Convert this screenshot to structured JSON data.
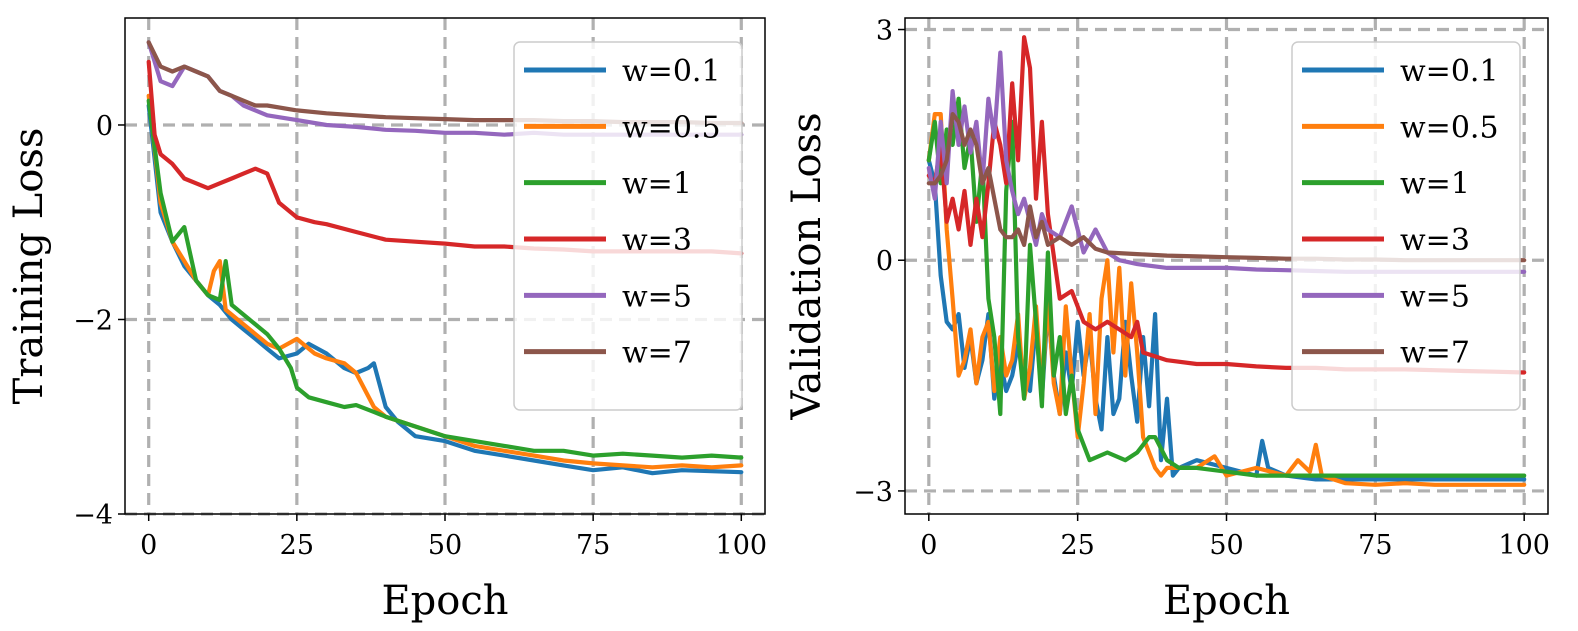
{
  "chart_data": [
    {
      "type": "line",
      "xlabel": "Epoch",
      "ylabel": "Training Loss",
      "xlim": [
        -4,
        104
      ],
      "ylim": [
        -4,
        1.1
      ],
      "xticks": [
        0,
        25,
        50,
        75,
        100
      ],
      "yticks": [
        -4,
        -2,
        0
      ],
      "xtick_labels": [
        "0",
        "25",
        "50",
        "75",
        "100"
      ],
      "ytick_labels": [
        "−4",
        "−2",
        "0"
      ],
      "grid": true,
      "legend_position": "top-right",
      "series": [
        {
          "name": "w=0.1",
          "color": "#1f77b4",
          "x": [
            0,
            2,
            4,
            6,
            8,
            10,
            12,
            14,
            16,
            18,
            20,
            22,
            25,
            27,
            30,
            33,
            35,
            37,
            38,
            40,
            42,
            45,
            50,
            55,
            60,
            65,
            70,
            75,
            80,
            85,
            90,
            95,
            100
          ],
          "y": [
            0.2,
            -0.9,
            -1.2,
            -1.45,
            -1.6,
            -1.75,
            -1.85,
            -2.0,
            -2.1,
            -2.2,
            -2.3,
            -2.4,
            -2.35,
            -2.25,
            -2.35,
            -2.5,
            -2.55,
            -2.5,
            -2.45,
            -2.9,
            -3.05,
            -3.2,
            -3.25,
            -3.35,
            -3.4,
            -3.45,
            -3.5,
            -3.55,
            -3.52,
            -3.58,
            -3.55,
            -3.56,
            -3.57
          ]
        },
        {
          "name": "w=0.5",
          "color": "#ff7f0e",
          "x": [
            0,
            2,
            4,
            6,
            8,
            10,
            11,
            12,
            13,
            15,
            18,
            20,
            22,
            25,
            28,
            30,
            33,
            35,
            38,
            40,
            45,
            50,
            55,
            60,
            65,
            70,
            75,
            80,
            85,
            90,
            95,
            100
          ],
          "y": [
            0.3,
            -0.8,
            -1.2,
            -1.4,
            -1.6,
            -1.75,
            -1.5,
            -1.4,
            -1.9,
            -2.0,
            -2.15,
            -2.25,
            -2.3,
            -2.2,
            -2.35,
            -2.4,
            -2.45,
            -2.55,
            -2.9,
            -3.0,
            -3.1,
            -3.2,
            -3.3,
            -3.35,
            -3.4,
            -3.45,
            -3.48,
            -3.5,
            -3.52,
            -3.5,
            -3.52,
            -3.5
          ]
        },
        {
          "name": "w=1",
          "color": "#2ca02c",
          "x": [
            0,
            2,
            4,
            6,
            8,
            10,
            12,
            13,
            14,
            16,
            18,
            20,
            22,
            24,
            25,
            27,
            30,
            33,
            35,
            38,
            40,
            45,
            50,
            55,
            60,
            65,
            70,
            75,
            80,
            85,
            90,
            95,
            100
          ],
          "y": [
            0.25,
            -0.7,
            -1.2,
            -1.05,
            -1.6,
            -1.75,
            -1.8,
            -1.4,
            -1.85,
            -1.95,
            -2.05,
            -2.15,
            -2.3,
            -2.5,
            -2.7,
            -2.8,
            -2.85,
            -2.9,
            -2.88,
            -2.95,
            -3.0,
            -3.1,
            -3.2,
            -3.25,
            -3.3,
            -3.35,
            -3.35,
            -3.4,
            -3.38,
            -3.4,
            -3.42,
            -3.4,
            -3.42
          ]
        },
        {
          "name": "w=3",
          "color": "#d62728",
          "x": [
            0,
            1,
            2,
            4,
            6,
            8,
            10,
            12,
            14,
            16,
            18,
            20,
            22,
            25,
            28,
            30,
            35,
            40,
            45,
            50,
            55,
            60,
            65,
            70,
            75,
            80,
            85,
            90,
            95,
            100
          ],
          "y": [
            0.65,
            -0.1,
            -0.3,
            -0.4,
            -0.55,
            -0.6,
            -0.65,
            -0.6,
            -0.55,
            -0.5,
            -0.45,
            -0.5,
            -0.8,
            -0.95,
            -1.0,
            -1.02,
            -1.1,
            -1.18,
            -1.2,
            -1.22,
            -1.25,
            -1.25,
            -1.27,
            -1.28,
            -1.3,
            -1.3,
            -1.3,
            -1.3,
            -1.3,
            -1.32
          ]
        },
        {
          "name": "w=5",
          "color": "#9467bd",
          "x": [
            0,
            2,
            4,
            6,
            8,
            10,
            12,
            14,
            16,
            18,
            20,
            25,
            30,
            35,
            40,
            45,
            50,
            55,
            60,
            65,
            70,
            75,
            80,
            85,
            90,
            95,
            100
          ],
          "y": [
            0.85,
            0.45,
            0.4,
            0.6,
            0.55,
            0.5,
            0.35,
            0.3,
            0.2,
            0.15,
            0.1,
            0.05,
            0.0,
            -0.02,
            -0.05,
            -0.06,
            -0.08,
            -0.08,
            -0.1,
            -0.08,
            -0.1,
            -0.1,
            -0.1,
            -0.1,
            -0.1,
            -0.1,
            -0.1
          ]
        },
        {
          "name": "w=7",
          "color": "#8c564b",
          "x": [
            0,
            2,
            4,
            6,
            8,
            10,
            12,
            14,
            16,
            18,
            20,
            25,
            30,
            35,
            40,
            45,
            50,
            55,
            60,
            65,
            70,
            75,
            80,
            85,
            90,
            95,
            100
          ],
          "y": [
            0.85,
            0.6,
            0.55,
            0.6,
            0.55,
            0.5,
            0.35,
            0.3,
            0.25,
            0.2,
            0.2,
            0.15,
            0.12,
            0.1,
            0.08,
            0.07,
            0.06,
            0.05,
            0.05,
            0.05,
            0.04,
            0.04,
            0.03,
            0.03,
            0.03,
            0.02,
            0.02
          ]
        }
      ]
    },
    {
      "type": "line",
      "xlabel": "Epoch",
      "ylabel": "Validation Loss",
      "xlim": [
        -4,
        104
      ],
      "ylim": [
        -3.3,
        3.15
      ],
      "xticks": [
        0,
        25,
        50,
        75,
        100
      ],
      "yticks": [
        -3,
        0,
        3
      ],
      "xtick_labels": [
        "0",
        "25",
        "50",
        "75",
        "100"
      ],
      "ytick_labels": [
        "−3",
        "0",
        "3"
      ],
      "grid": true,
      "legend_position": "top-right",
      "series": [
        {
          "name": "w=0.1",
          "color": "#1f77b4",
          "x": [
            0,
            1,
            2,
            3,
            4,
            5,
            6,
            7,
            8,
            9,
            10,
            11,
            12,
            13,
            14,
            15,
            16,
            17,
            18,
            19,
            20,
            21,
            22,
            23,
            24,
            25,
            26,
            27,
            28,
            29,
            30,
            31,
            32,
            33,
            34,
            35,
            36,
            37,
            38,
            39,
            40,
            41,
            42,
            45,
            50,
            55,
            56,
            57,
            60,
            65,
            70,
            75,
            80,
            85,
            90,
            95,
            100
          ],
          "y": [
            1.3,
            1.0,
            -0.2,
            -0.8,
            -0.9,
            -0.7,
            -1.4,
            -1.0,
            -1.6,
            -1.3,
            -0.7,
            -1.8,
            -1.3,
            -1.7,
            -1.5,
            -1.1,
            -1.5,
            -1.7,
            -0.8,
            -1.8,
            -0.6,
            -1.5,
            -2.0,
            -1.2,
            -1.7,
            -0.8,
            -1.5,
            -1.0,
            -1.8,
            -2.2,
            -1.0,
            -2.0,
            -1.8,
            -0.8,
            -1.5,
            -2.1,
            -1.0,
            -1.9,
            -0.7,
            -2.6,
            -1.8,
            -2.8,
            -2.7,
            -2.6,
            -2.7,
            -2.8,
            -2.35,
            -2.7,
            -2.8,
            -2.85,
            -2.85,
            -2.85,
            -2.85,
            -2.85,
            -2.85,
            -2.85,
            -2.85
          ]
        },
        {
          "name": "w=0.5",
          "color": "#ff7f0e",
          "x": [
            0,
            1,
            2,
            3,
            4,
            5,
            6,
            7,
            8,
            9,
            10,
            11,
            12,
            13,
            14,
            15,
            16,
            17,
            18,
            19,
            20,
            21,
            22,
            23,
            24,
            25,
            26,
            27,
            28,
            29,
            30,
            31,
            32,
            33,
            34,
            35,
            36,
            37,
            38,
            39,
            40,
            45,
            48,
            50,
            55,
            60,
            62,
            64,
            65,
            66,
            70,
            75,
            80,
            85,
            90,
            95,
            100
          ],
          "y": [
            1.3,
            1.9,
            1.9,
            0.4,
            -0.5,
            -1.5,
            -1.3,
            -0.9,
            -1.6,
            -1.0,
            -0.8,
            -1.7,
            -1.0,
            -1.5,
            -1.3,
            -0.7,
            -1.8,
            -1.4,
            -0.6,
            -1.7,
            -0.5,
            -1.6,
            -2.0,
            -0.6,
            -1.5,
            -2.3,
            -1.6,
            -0.7,
            -2.0,
            -0.5,
            0.0,
            -1.2,
            -0.1,
            -1.5,
            -0.3,
            -1.2,
            -2.3,
            -2.5,
            -2.7,
            -2.8,
            -2.7,
            -2.7,
            -2.55,
            -2.8,
            -2.7,
            -2.8,
            -2.6,
            -2.75,
            -2.4,
            -2.8,
            -2.9,
            -2.92,
            -2.9,
            -2.92,
            -2.92,
            -2.92,
            -2.92
          ]
        },
        {
          "name": "w=1",
          "color": "#2ca02c",
          "x": [
            0,
            1,
            2,
            3,
            4,
            5,
            6,
            7,
            8,
            9,
            10,
            11,
            12,
            13,
            14,
            15,
            16,
            17,
            18,
            19,
            20,
            21,
            22,
            23,
            24,
            25,
            27,
            30,
            33,
            35,
            37,
            38,
            40,
            42,
            45,
            50,
            55,
            60,
            65,
            70,
            75,
            80,
            85,
            90,
            95,
            100
          ],
          "y": [
            1.3,
            1.8,
            1.0,
            1.7,
            1.5,
            2.1,
            1.2,
            1.6,
            0.5,
            1.3,
            -0.5,
            -1.0,
            -2.0,
            0.9,
            1.8,
            -1.0,
            -1.8,
            0.2,
            -0.8,
            -1.9,
            0.1,
            -1.5,
            -1.0,
            -2.0,
            -1.5,
            -2.2,
            -2.6,
            -2.5,
            -2.6,
            -2.5,
            -2.3,
            -2.3,
            -2.6,
            -2.7,
            -2.7,
            -2.75,
            -2.8,
            -2.8,
            -2.8,
            -2.8,
            -2.8,
            -2.8,
            -2.8,
            -2.8,
            -2.8,
            -2.8
          ]
        },
        {
          "name": "w=3",
          "color": "#d62728",
          "x": [
            0,
            1,
            2,
            3,
            4,
            5,
            6,
            7,
            8,
            9,
            10,
            11,
            12,
            13,
            14,
            15,
            16,
            17,
            18,
            19,
            20,
            22,
            24,
            26,
            28,
            30,
            32,
            34,
            35,
            36,
            38,
            40,
            45,
            50,
            55,
            60,
            65,
            70,
            75,
            80,
            85,
            90,
            95,
            100
          ],
          "y": [
            1.1,
            1.0,
            1.5,
            0.5,
            0.8,
            0.4,
            0.9,
            0.2,
            0.8,
            0.3,
            1.0,
            1.8,
            1.5,
            1.0,
            2.3,
            1.3,
            2.9,
            2.5,
            0.8,
            1.8,
            0.6,
            -0.5,
            -0.4,
            -0.8,
            -0.9,
            -0.8,
            -0.9,
            -1.0,
            -0.8,
            -1.2,
            -1.25,
            -1.3,
            -1.35,
            -1.35,
            -1.38,
            -1.4,
            -1.4,
            -1.42,
            -1.42,
            -1.42,
            -1.43,
            -1.44,
            -1.45,
            -1.46
          ]
        },
        {
          "name": "w=5",
          "color": "#9467bd",
          "x": [
            0,
            1,
            2,
            3,
            4,
            5,
            6,
            7,
            8,
            9,
            10,
            11,
            12,
            13,
            14,
            15,
            16,
            17,
            18,
            19,
            20,
            22,
            24,
            26,
            28,
            30,
            32,
            35,
            40,
            45,
            50,
            55,
            60,
            65,
            70,
            75,
            80,
            85,
            90,
            95,
            100
          ],
          "y": [
            1.2,
            0.8,
            1.8,
            1.0,
            2.2,
            1.5,
            2.0,
            1.4,
            1.8,
            1.0,
            2.1,
            1.6,
            2.7,
            1.3,
            0.9,
            0.6,
            0.8,
            0.5,
            0.2,
            0.6,
            0.4,
            0.3,
            0.7,
            0.1,
            0.4,
            0.1,
            0.0,
            -0.05,
            -0.1,
            -0.1,
            -0.1,
            -0.12,
            -0.13,
            -0.14,
            -0.15,
            -0.15,
            -0.15,
            -0.15,
            -0.15,
            -0.15,
            -0.15
          ]
        },
        {
          "name": "w=7",
          "color": "#8c564b",
          "x": [
            0,
            1,
            2,
            3,
            4,
            5,
            6,
            7,
            8,
            9,
            10,
            11,
            12,
            13,
            14,
            15,
            16,
            17,
            18,
            19,
            20,
            22,
            24,
            26,
            28,
            30,
            35,
            40,
            45,
            50,
            55,
            60,
            65,
            70,
            75,
            80,
            85,
            90,
            95,
            100
          ],
          "y": [
            1.0,
            1.0,
            1.1,
            1.3,
            1.9,
            1.8,
            1.5,
            1.7,
            1.5,
            1.0,
            1.2,
            0.8,
            0.4,
            0.3,
            0.3,
            0.4,
            0.2,
            0.7,
            0.3,
            0.5,
            0.2,
            0.3,
            0.2,
            0.3,
            0.15,
            0.1,
            0.08,
            0.06,
            0.05,
            0.04,
            0.03,
            0.02,
            0.02,
            0.01,
            0.01,
            0.0,
            0.0,
            0.0,
            0.0,
            0.0
          ]
        }
      ]
    }
  ]
}
